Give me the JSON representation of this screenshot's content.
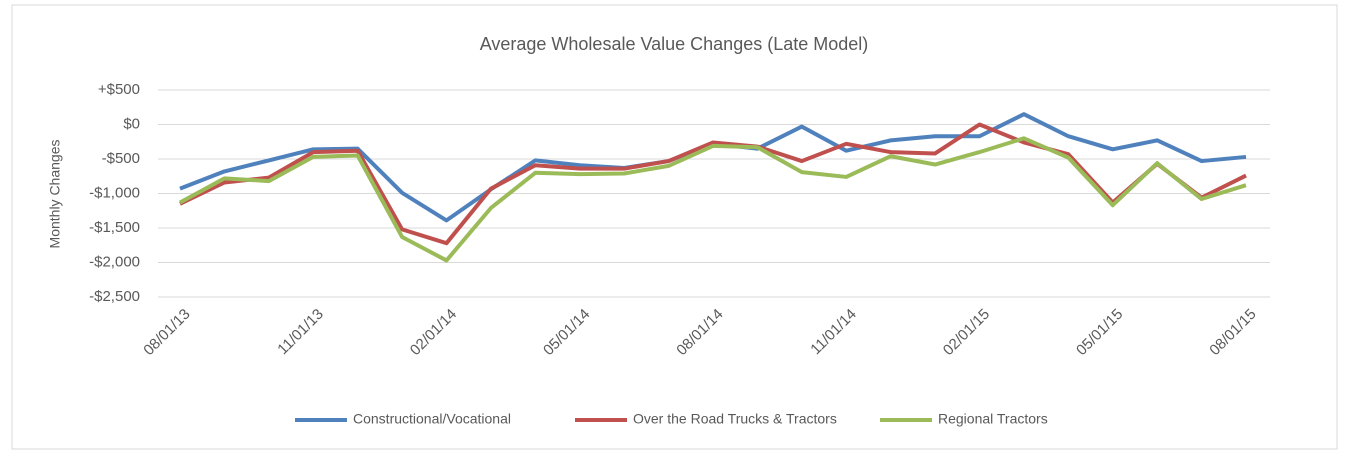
{
  "chart_data": {
    "type": "line",
    "title": "Average Wholesale Value Changes (Late Model)",
    "y_label": "Monthly Changes",
    "categories": [
      "08/01/13",
      null,
      null,
      "11/01/13",
      null,
      null,
      "02/01/14",
      null,
      null,
      "05/01/14",
      null,
      null,
      "08/01/14",
      null,
      null,
      "11/01/14",
      null,
      null,
      "02/01/15",
      null,
      null,
      "05/01/15",
      null,
      null,
      "08/01/15"
    ],
    "series": [
      {
        "name": "Constructional/Vocational",
        "color": "#4f81bd",
        "values": [
          -930,
          -680,
          -520,
          -360,
          -350,
          -990,
          -1390,
          -940,
          -520,
          -590,
          -630,
          -530,
          -280,
          -350,
          -30,
          -380,
          -230,
          -170,
          -170,
          150,
          -170,
          -360,
          -230,
          -530,
          -470
        ]
      },
      {
        "name": "Over the Road Trucks & Tractors",
        "color": "#c0504d",
        "values": [
          -1150,
          -840,
          -770,
          -400,
          -380,
          -1520,
          -1720,
          -930,
          -590,
          -640,
          -640,
          -530,
          -260,
          -320,
          -530,
          -280,
          -400,
          -420,
          0,
          -260,
          -430,
          -1130,
          -570,
          -1060,
          -740
        ]
      },
      {
        "name": "Regional Tractors",
        "color": "#9bbb59",
        "values": [
          -1130,
          -780,
          -820,
          -470,
          -450,
          -1630,
          -1970,
          -1210,
          -700,
          -720,
          -710,
          -600,
          -310,
          -330,
          -690,
          -760,
          -460,
          -580,
          -400,
          -200,
          -480,
          -1170,
          -560,
          -1080,
          -880
        ]
      }
    ],
    "ylim": [
      -2500,
      500
    ],
    "yticks": [
      {
        "value": 500,
        "label": "+$500"
      },
      {
        "value": 0,
        "label": "$0"
      },
      {
        "value": -500,
        "label": "-$500"
      },
      {
        "value": -1000,
        "label": "-$1,000"
      },
      {
        "value": -1500,
        "label": "-$1,500"
      },
      {
        "value": -2000,
        "label": "-$2,000"
      },
      {
        "value": -2500,
        "label": "-$2,500"
      }
    ],
    "grid": true,
    "legend": "bottom"
  }
}
